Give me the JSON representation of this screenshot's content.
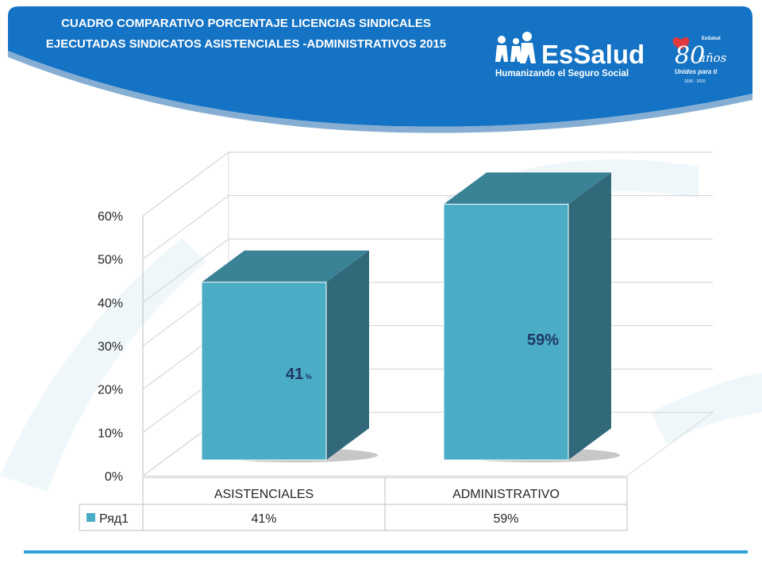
{
  "slide": {
    "title_line1": "CUADRO COMPARATIVO PORCENTAJE LICENCIAS  SINDICALES",
    "title_line2": "EJECUTADAS SINDICATOS ASISTENCIALES -ADMINISTRATIVOS 2015",
    "colors": {
      "banner": "#1473c4",
      "banner_dark": "#0d5ea8",
      "accent_line": "#2aa3da"
    }
  },
  "logos": {
    "essalud_name": "EsSalud",
    "essalud_tagline": "Humanizando el Seguro Social",
    "anniversary_number": "80",
    "anniversary_word": "años",
    "anniversary_small": "EsSalud",
    "anniversary_tagline": "Unidos para ti",
    "anniversary_years": "1936 - 2016"
  },
  "chart_data": {
    "type": "bar",
    "style": "3d-clustered-column",
    "categories": [
      "ASISTENCIALES",
      "ADMINISTRATIVO"
    ],
    "series": [
      {
        "name": "Ряд1",
        "values": [
          0.41,
          0.59
        ],
        "color": "#4bacc6"
      }
    ],
    "data_labels": [
      {
        "number": "41",
        "unit": "%"
      },
      {
        "number": "59%",
        "unit": ""
      }
    ],
    "table_values": [
      "41%",
      "59%"
    ],
    "yticks": [
      "0%",
      "10%",
      "20%",
      "30%",
      "40%",
      "50%",
      "60%"
    ],
    "ylim": [
      0,
      0.6
    ],
    "legend_key": "Ряд1",
    "grid": true
  }
}
